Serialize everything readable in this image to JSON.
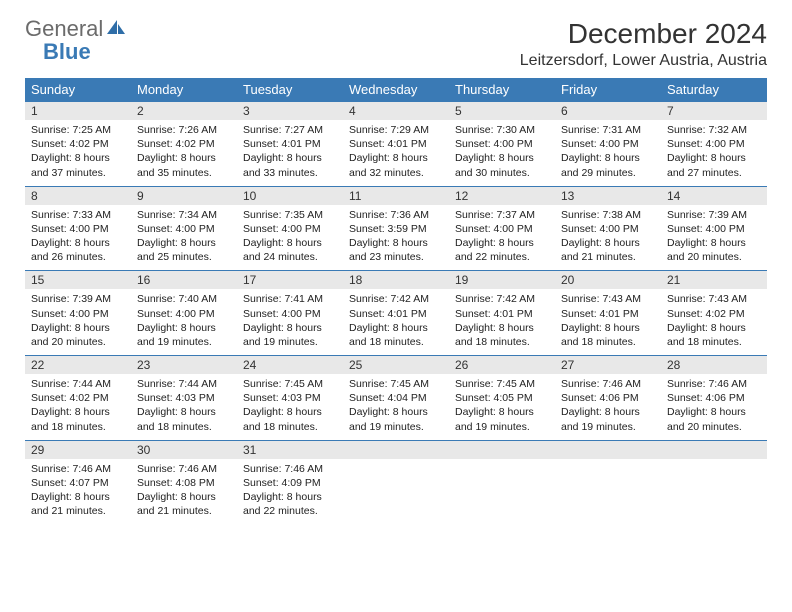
{
  "brand": {
    "word1": "General",
    "word2": "Blue",
    "icon_fill": "#2f6ea8"
  },
  "title": "December 2024",
  "location": "Leitzersdorf, Lower Austria, Austria",
  "colors": {
    "header_bg": "#3a7ab5",
    "header_fg": "#ffffff",
    "daynum_bg": "#e8e8e8",
    "daynum_border": "#3a7ab5",
    "text": "#222222"
  },
  "weekdays": [
    "Sunday",
    "Monday",
    "Tuesday",
    "Wednesday",
    "Thursday",
    "Friday",
    "Saturday"
  ],
  "weeks": [
    [
      {
        "n": "1",
        "sunrise": "7:25 AM",
        "sunset": "4:02 PM",
        "dl_h": "8",
        "dl_m": "37"
      },
      {
        "n": "2",
        "sunrise": "7:26 AM",
        "sunset": "4:02 PM",
        "dl_h": "8",
        "dl_m": "35"
      },
      {
        "n": "3",
        "sunrise": "7:27 AM",
        "sunset": "4:01 PM",
        "dl_h": "8",
        "dl_m": "33"
      },
      {
        "n": "4",
        "sunrise": "7:29 AM",
        "sunset": "4:01 PM",
        "dl_h": "8",
        "dl_m": "32"
      },
      {
        "n": "5",
        "sunrise": "7:30 AM",
        "sunset": "4:00 PM",
        "dl_h": "8",
        "dl_m": "30"
      },
      {
        "n": "6",
        "sunrise": "7:31 AM",
        "sunset": "4:00 PM",
        "dl_h": "8",
        "dl_m": "29"
      },
      {
        "n": "7",
        "sunrise": "7:32 AM",
        "sunset": "4:00 PM",
        "dl_h": "8",
        "dl_m": "27"
      }
    ],
    [
      {
        "n": "8",
        "sunrise": "7:33 AM",
        "sunset": "4:00 PM",
        "dl_h": "8",
        "dl_m": "26"
      },
      {
        "n": "9",
        "sunrise": "7:34 AM",
        "sunset": "4:00 PM",
        "dl_h": "8",
        "dl_m": "25"
      },
      {
        "n": "10",
        "sunrise": "7:35 AM",
        "sunset": "4:00 PM",
        "dl_h": "8",
        "dl_m": "24"
      },
      {
        "n": "11",
        "sunrise": "7:36 AM",
        "sunset": "3:59 PM",
        "dl_h": "8",
        "dl_m": "23"
      },
      {
        "n": "12",
        "sunrise": "7:37 AM",
        "sunset": "4:00 PM",
        "dl_h": "8",
        "dl_m": "22"
      },
      {
        "n": "13",
        "sunrise": "7:38 AM",
        "sunset": "4:00 PM",
        "dl_h": "8",
        "dl_m": "21"
      },
      {
        "n": "14",
        "sunrise": "7:39 AM",
        "sunset": "4:00 PM",
        "dl_h": "8",
        "dl_m": "20"
      }
    ],
    [
      {
        "n": "15",
        "sunrise": "7:39 AM",
        "sunset": "4:00 PM",
        "dl_h": "8",
        "dl_m": "20"
      },
      {
        "n": "16",
        "sunrise": "7:40 AM",
        "sunset": "4:00 PM",
        "dl_h": "8",
        "dl_m": "19"
      },
      {
        "n": "17",
        "sunrise": "7:41 AM",
        "sunset": "4:00 PM",
        "dl_h": "8",
        "dl_m": "19"
      },
      {
        "n": "18",
        "sunrise": "7:42 AM",
        "sunset": "4:01 PM",
        "dl_h": "8",
        "dl_m": "18"
      },
      {
        "n": "19",
        "sunrise": "7:42 AM",
        "sunset": "4:01 PM",
        "dl_h": "8",
        "dl_m": "18"
      },
      {
        "n": "20",
        "sunrise": "7:43 AM",
        "sunset": "4:01 PM",
        "dl_h": "8",
        "dl_m": "18"
      },
      {
        "n": "21",
        "sunrise": "7:43 AM",
        "sunset": "4:02 PM",
        "dl_h": "8",
        "dl_m": "18"
      }
    ],
    [
      {
        "n": "22",
        "sunrise": "7:44 AM",
        "sunset": "4:02 PM",
        "dl_h": "8",
        "dl_m": "18"
      },
      {
        "n": "23",
        "sunrise": "7:44 AM",
        "sunset": "4:03 PM",
        "dl_h": "8",
        "dl_m": "18"
      },
      {
        "n": "24",
        "sunrise": "7:45 AM",
        "sunset": "4:03 PM",
        "dl_h": "8",
        "dl_m": "18"
      },
      {
        "n": "25",
        "sunrise": "7:45 AM",
        "sunset": "4:04 PM",
        "dl_h": "8",
        "dl_m": "19"
      },
      {
        "n": "26",
        "sunrise": "7:45 AM",
        "sunset": "4:05 PM",
        "dl_h": "8",
        "dl_m": "19"
      },
      {
        "n": "27",
        "sunrise": "7:46 AM",
        "sunset": "4:06 PM",
        "dl_h": "8",
        "dl_m": "19"
      },
      {
        "n": "28",
        "sunrise": "7:46 AM",
        "sunset": "4:06 PM",
        "dl_h": "8",
        "dl_m": "20"
      }
    ],
    [
      {
        "n": "29",
        "sunrise": "7:46 AM",
        "sunset": "4:07 PM",
        "dl_h": "8",
        "dl_m": "21"
      },
      {
        "n": "30",
        "sunrise": "7:46 AM",
        "sunset": "4:08 PM",
        "dl_h": "8",
        "dl_m": "21"
      },
      {
        "n": "31",
        "sunrise": "7:46 AM",
        "sunset": "4:09 PM",
        "dl_h": "8",
        "dl_m": "22"
      },
      {
        "empty": true
      },
      {
        "empty": true
      },
      {
        "empty": true
      },
      {
        "empty": true
      }
    ]
  ],
  "labels": {
    "sunrise": "Sunrise:",
    "sunset": "Sunset:",
    "daylight_prefix": "Daylight:",
    "hours_word": "hours",
    "and_word": "and",
    "minutes_word": "minutes."
  }
}
